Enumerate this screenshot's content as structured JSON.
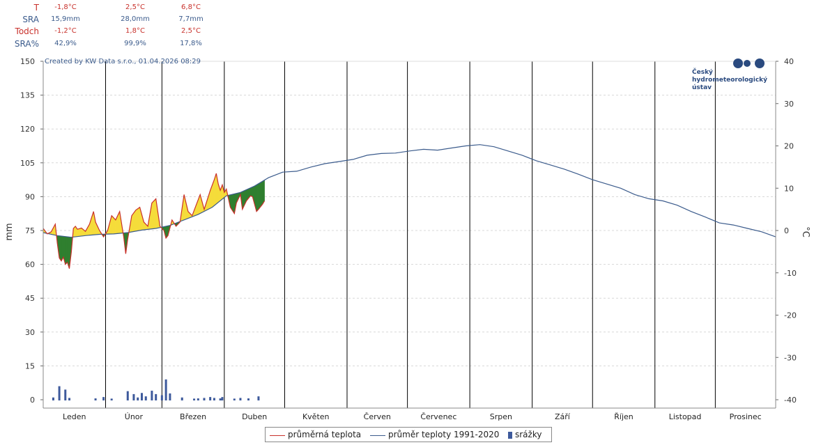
{
  "stats": {
    "rows": [
      {
        "label": "T",
        "values": [
          "-1,8°C",
          "2,5°C",
          "6,8°C"
        ]
      },
      {
        "label": "SRA",
        "values": [
          "15,9mm",
          "28,0mm",
          "7,7mm"
        ]
      },
      {
        "label": "Todch",
        "values": [
          "-1,2°C",
          "1,8°C",
          "2,5°C"
        ]
      },
      {
        "label": "SRA%",
        "values": [
          "42,9%",
          "99,9%",
          "17,8%"
        ]
      }
    ]
  },
  "chart_data": {
    "type": "line",
    "credit": "Created by KW Data s.r.o., 01.04.2026 08:29",
    "logo_text": [
      "Český",
      "hydrometeorologický",
      "ústav"
    ],
    "ylabel_left": "mm",
    "ylabel_right": "°C",
    "y_left_ticks": [
      0,
      15,
      30,
      45,
      60,
      75,
      90,
      105,
      120,
      135,
      150
    ],
    "y_right_ticks": [
      -40,
      -30,
      -20,
      -10,
      0,
      10,
      20,
      30,
      40
    ],
    "ylim_left": [
      0,
      150
    ],
    "ylim_right": [
      -40,
      40
    ],
    "months": [
      "Leden",
      "Únor",
      "Březen",
      "Duben",
      "Květen",
      "Červen",
      "Červenec",
      "Srpen",
      "Září",
      "Říjen",
      "Listopad",
      "Prosinec"
    ],
    "grid": true,
    "legend": [
      "průměrná teplota",
      "průměr teploty 1991-2020",
      "srážky"
    ],
    "colors": {
      "actual": "#c8302a",
      "normal": "#3b5b8c",
      "above": "#f5dc3a",
      "below": "#2f7f2f",
      "precip": "#3e5a9c"
    },
    "normal_temp": [
      {
        "day": 1,
        "value": -0.5
      },
      {
        "day": 8,
        "value": -1.2
      },
      {
        "day": 15,
        "value": -1.6
      },
      {
        "day": 22,
        "value": -1.2
      },
      {
        "day": 29,
        "value": -0.9
      },
      {
        "day": 36,
        "value": -0.8
      },
      {
        "day": 43,
        "value": -0.5
      },
      {
        "day": 50,
        "value": 0.1
      },
      {
        "day": 57,
        "value": 0.5
      },
      {
        "day": 64,
        "value": 1.2
      },
      {
        "day": 71,
        "value": 2.5
      },
      {
        "day": 78,
        "value": 3.8
      },
      {
        "day": 85,
        "value": 5.5
      },
      {
        "day": 92,
        "value": 8.2
      },
      {
        "day": 99,
        "value": 9.0
      },
      {
        "day": 106,
        "value": 10.5
      },
      {
        "day": 113,
        "value": 12.5
      },
      {
        "day": 120,
        "value": 13.8
      },
      {
        "day": 127,
        "value": 14.0
      },
      {
        "day": 134,
        "value": 15.0
      },
      {
        "day": 141,
        "value": 15.8
      },
      {
        "day": 148,
        "value": 16.3
      },
      {
        "day": 155,
        "value": 16.8
      },
      {
        "day": 162,
        "value": 17.8
      },
      {
        "day": 169,
        "value": 18.2
      },
      {
        "day": 176,
        "value": 18.3
      },
      {
        "day": 183,
        "value": 18.8
      },
      {
        "day": 190,
        "value": 19.2
      },
      {
        "day": 197,
        "value": 19.0
      },
      {
        "day": 204,
        "value": 19.5
      },
      {
        "day": 211,
        "value": 20.0
      },
      {
        "day": 218,
        "value": 20.3
      },
      {
        "day": 225,
        "value": 19.8
      },
      {
        "day": 232,
        "value": 18.8
      },
      {
        "day": 239,
        "value": 17.8
      },
      {
        "day": 246,
        "value": 16.5
      },
      {
        "day": 253,
        "value": 15.5
      },
      {
        "day": 260,
        "value": 14.5
      },
      {
        "day": 267,
        "value": 13.3
      },
      {
        "day": 274,
        "value": 12.0
      },
      {
        "day": 281,
        "value": 11.0
      },
      {
        "day": 288,
        "value": 10.0
      },
      {
        "day": 295,
        "value": 8.5
      },
      {
        "day": 302,
        "value": 7.5
      },
      {
        "day": 309,
        "value": 7.0
      },
      {
        "day": 316,
        "value": 6.0
      },
      {
        "day": 323,
        "value": 4.5
      },
      {
        "day": 330,
        "value": 3.2
      },
      {
        "day": 337,
        "value": 1.8
      },
      {
        "day": 344,
        "value": 1.3
      },
      {
        "day": 351,
        "value": 0.5
      },
      {
        "day": 358,
        "value": -0.3
      },
      {
        "day": 365,
        "value": -1.5
      }
    ],
    "actual_temp": [
      {
        "day": 1,
        "value": 0.5
      },
      {
        "day": 3,
        "value": -0.8
      },
      {
        "day": 5,
        "value": -0.3
      },
      {
        "day": 7,
        "value": 1.5
      },
      {
        "day": 8,
        "value": -3.0
      },
      {
        "day": 9,
        "value": -6.5
      },
      {
        "day": 10,
        "value": -7.2
      },
      {
        "day": 11,
        "value": -6.3
      },
      {
        "day": 12,
        "value": -8.0
      },
      {
        "day": 13,
        "value": -7.5
      },
      {
        "day": 14,
        "value": -9.0
      },
      {
        "day": 15,
        "value": -5.0
      },
      {
        "day": 16,
        "value": 0.5
      },
      {
        "day": 17,
        "value": 1.0
      },
      {
        "day": 18,
        "value": 0.3
      },
      {
        "day": 20,
        "value": 0.6
      },
      {
        "day": 22,
        "value": -0.2
      },
      {
        "day": 24,
        "value": 1.5
      },
      {
        "day": 26,
        "value": 4.5
      },
      {
        "day": 27,
        "value": 2.0
      },
      {
        "day": 29,
        "value": 0.0
      },
      {
        "day": 31,
        "value": -1.5
      },
      {
        "day": 33,
        "value": 0.0
      },
      {
        "day": 35,
        "value": 3.5
      },
      {
        "day": 37,
        "value": 2.5
      },
      {
        "day": 39,
        "value": 4.5
      },
      {
        "day": 41,
        "value": -1.5
      },
      {
        "day": 42,
        "value": -5.5
      },
      {
        "day": 43,
        "value": -2.0
      },
      {
        "day": 45,
        "value": 3.5
      },
      {
        "day": 47,
        "value": 4.8
      },
      {
        "day": 49,
        "value": 5.5
      },
      {
        "day": 51,
        "value": 2.0
      },
      {
        "day": 53,
        "value": 1.0
      },
      {
        "day": 55,
        "value": 6.5
      },
      {
        "day": 57,
        "value": 7.5
      },
      {
        "day": 59,
        "value": 1.0
      },
      {
        "day": 61,
        "value": 0.0
      },
      {
        "day": 62,
        "value": -1.8
      },
      {
        "day": 63,
        "value": -1.2
      },
      {
        "day": 65,
        "value": 2.5
      },
      {
        "day": 67,
        "value": 1.0
      },
      {
        "day": 69,
        "value": 2.0
      },
      {
        "day": 71,
        "value": 8.5
      },
      {
        "day": 73,
        "value": 4.5
      },
      {
        "day": 75,
        "value": 3.5
      },
      {
        "day": 77,
        "value": 6.0
      },
      {
        "day": 79,
        "value": 8.5
      },
      {
        "day": 81,
        "value": 5.0
      },
      {
        "day": 84,
        "value": 9.5
      },
      {
        "day": 86,
        "value": 12.0
      },
      {
        "day": 87,
        "value": 13.5
      },
      {
        "day": 88,
        "value": 11.0
      },
      {
        "day": 89,
        "value": 9.5
      },
      {
        "day": 90,
        "value": 10.8
      },
      {
        "day": 91,
        "value": 9.0
      },
      {
        "day": 92,
        "value": 9.8
      },
      {
        "day": 94,
        "value": 5.5
      },
      {
        "day": 96,
        "value": 4.0
      },
      {
        "day": 97,
        "value": 6.5
      },
      {
        "day": 99,
        "value": 8.5
      },
      {
        "day": 100,
        "value": 5.0
      },
      {
        "day": 102,
        "value": 7.0
      },
      {
        "day": 104,
        "value": 8.2
      },
      {
        "day": 105,
        "value": 8.0
      },
      {
        "day": 107,
        "value": 4.5
      },
      {
        "day": 108,
        "value": 5.0
      },
      {
        "day": 110,
        "value": 6.2
      },
      {
        "day": 111,
        "value": 7.0
      }
    ],
    "precipitation": [
      {
        "day": 6,
        "value": 1.0
      },
      {
        "day": 9,
        "value": 6.0
      },
      {
        "day": 12,
        "value": 4.5
      },
      {
        "day": 14,
        "value": 0.8
      },
      {
        "day": 27,
        "value": 0.6
      },
      {
        "day": 31,
        "value": 1.2
      },
      {
        "day": 35,
        "value": 0.5
      },
      {
        "day": 43,
        "value": 3.8
      },
      {
        "day": 46,
        "value": 2.5
      },
      {
        "day": 48,
        "value": 1.0
      },
      {
        "day": 50,
        "value": 3.0
      },
      {
        "day": 52,
        "value": 1.5
      },
      {
        "day": 55,
        "value": 4.0
      },
      {
        "day": 57,
        "value": 2.5
      },
      {
        "day": 60,
        "value": 2.0
      },
      {
        "day": 62,
        "value": 9.0
      },
      {
        "day": 64,
        "value": 2.8
      },
      {
        "day": 70,
        "value": 1.0
      },
      {
        "day": 76,
        "value": 0.5
      },
      {
        "day": 78,
        "value": 0.6
      },
      {
        "day": 81,
        "value": 0.8
      },
      {
        "day": 84,
        "value": 1.2
      },
      {
        "day": 86,
        "value": 0.8
      },
      {
        "day": 89,
        "value": 0.6
      },
      {
        "day": 90,
        "value": 1.2
      },
      {
        "day": 96,
        "value": 0.5
      },
      {
        "day": 99,
        "value": 0.8
      },
      {
        "day": 103,
        "value": 0.6
      },
      {
        "day": 108,
        "value": 1.5
      }
    ]
  }
}
